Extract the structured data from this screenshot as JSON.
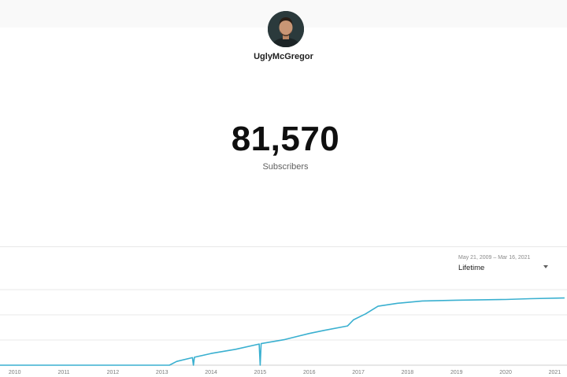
{
  "channel": {
    "name": "UglyMcGregor",
    "subscriber_count": "81,570",
    "subscriber_label": "Subscribers"
  },
  "date_range": {
    "dates": "May 21, 2009 – Mar 16, 2021",
    "selected": "Lifetime"
  },
  "colors": {
    "line": "#3ab0d0",
    "grid": "#e8e8e8",
    "text_secondary": "#606060"
  },
  "chart_data": {
    "type": "line",
    "title": "",
    "xlabel": "",
    "ylabel": "",
    "x_ticks": [
      "2010",
      "2011",
      "2012",
      "2013",
      "2014",
      "2015",
      "2016",
      "2017",
      "2018",
      "2019",
      "2020",
      "2021"
    ],
    "xlim": [
      2009.7,
      2021.25
    ],
    "ylim": [
      0,
      100
    ],
    "grid": true,
    "legend": "none",
    "series": [
      {
        "values": [
          [
            2009.7,
            0
          ],
          [
            2012.7,
            0
          ],
          [
            2013.15,
            0
          ],
          [
            2013.3,
            5
          ],
          [
            2013.62,
            10
          ],
          [
            2013.64,
            0
          ],
          [
            2013.66,
            10.5
          ],
          [
            2014.0,
            15.5
          ],
          [
            2014.5,
            21
          ],
          [
            2014.98,
            28
          ],
          [
            2015.0,
            0
          ],
          [
            2015.02,
            28.5
          ],
          [
            2015.5,
            34
          ],
          [
            2016.0,
            42
          ],
          [
            2016.3,
            46
          ],
          [
            2016.78,
            52
          ],
          [
            2016.9,
            60
          ],
          [
            2017.15,
            68
          ],
          [
            2017.4,
            78
          ],
          [
            2017.8,
            82
          ],
          [
            2018.3,
            85
          ],
          [
            2019.0,
            86
          ],
          [
            2020.0,
            87
          ],
          [
            2020.5,
            88
          ],
          [
            2021.2,
            89
          ]
        ]
      }
    ]
  }
}
